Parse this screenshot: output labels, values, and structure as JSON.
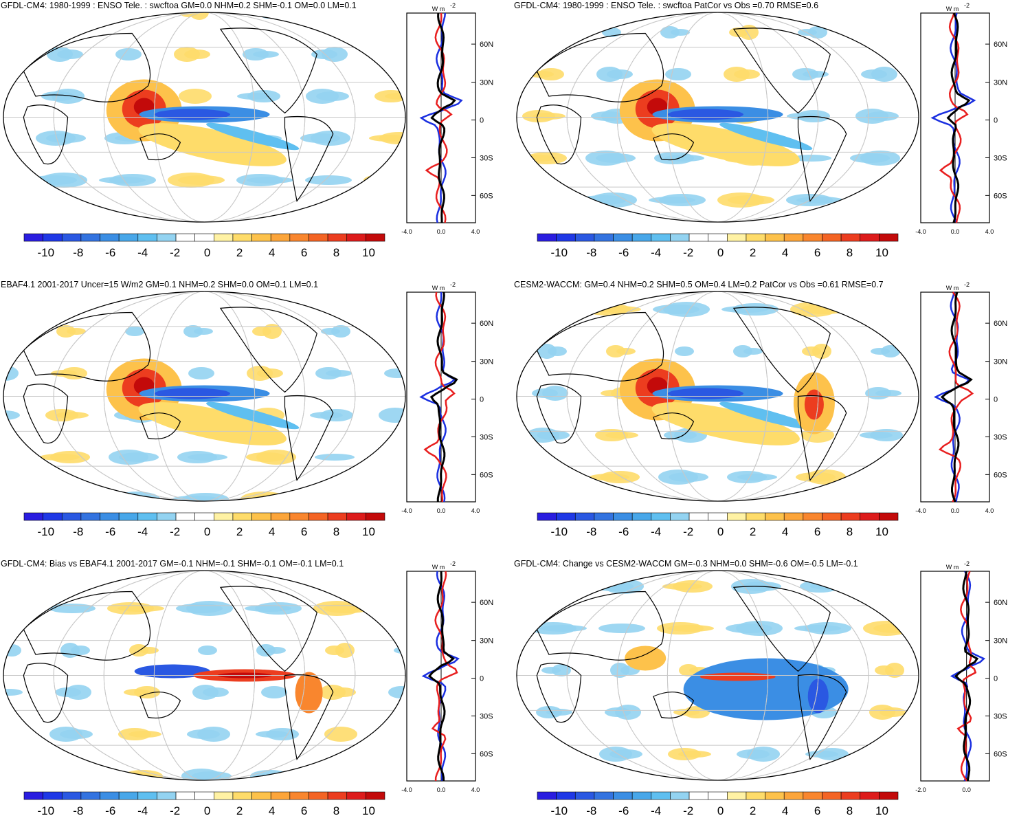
{
  "colorbar": {
    "colors": [
      "#2a1de0",
      "#1f38e6",
      "#2a58e2",
      "#3373e0",
      "#3b8ee4",
      "#48a7e9",
      "#5fbff0",
      "#93d3f1",
      "#ffffff",
      "#ffffff",
      "#fff2a4",
      "#fedc6a",
      "#fdc24b",
      "#fca53a",
      "#f9862e",
      "#f46424",
      "#ec3d1f",
      "#dd1b1b",
      "#c30a0a"
    ],
    "labels": [
      "-10",
      "-8",
      "-6",
      "-4",
      "-2",
      "0",
      "2",
      "4",
      "6",
      "8",
      "10"
    ]
  },
  "profile_lat_labels": [
    "60N",
    "30N",
    "0",
    "30S",
    "60S"
  ],
  "profile_units": "W m",
  "profile_units_exp": "-2",
  "series_colors": {
    "obs": "#1a2fe0",
    "model": "#e81e1e",
    "other": "#000000"
  },
  "panels": [
    {
      "id": "p1",
      "title": "GFDL-CM4: 1980-1999 : ENSO Tele. : swcftoa GM=0.0 NHM=0.2 SHM=-0.1 OM=0.0 LM=0.1",
      "xtick_labels": [
        "-4.0",
        "0.0",
        "4.0"
      ],
      "xlim": [
        -4,
        4
      ]
    },
    {
      "id": "p2",
      "title": "GFDL-CM4: 1980-1999 : ENSO Tele. : swcftoa PatCor vs Obs =0.70 RMSE=0.6",
      "xtick_labels": [
        "-4.0",
        "0.0",
        "4.0"
      ],
      "xlim": [
        -4,
        4
      ]
    },
    {
      "id": "p3",
      "title": "EBAF4.1 2001-2017 Uncer=15 W/m2 GM=0.1 NHM=0.2 SHM=0.0 OM=0.1 LM=0.1",
      "xtick_labels": [
        "-4.0",
        "0.0",
        "4.0"
      ],
      "xlim": [
        -4,
        4
      ]
    },
    {
      "id": "p4",
      "title": "CESM2-WACCM: GM=0.4 NHM=0.2 SHM=0.5 OM=0.4 LM=0.2 PatCor vs Obs =0.61 RMSE=0.7",
      "xtick_labels": [
        "-4.0",
        "0.0",
        "4.0"
      ],
      "xlim": [
        -4,
        4
      ]
    },
    {
      "id": "p5",
      "title": "GFDL-CM4: Bias vs EBAF4.1 2001-2017 GM=-0.1 NHM=-0.1 SHM=-0.1 OM=-0.1 LM=0.1",
      "xtick_labels": [
        "-4.0",
        "0.0",
        "4.0"
      ],
      "xlim": [
        -4,
        4
      ]
    },
    {
      "id": "p6",
      "title": "GFDL-CM4: Change vs CESM2-WACCM GM=-0.3 NHM=0.0 SHM=-0.6 OM=-0.5 LM=-0.1",
      "xtick_labels": [
        "-2.0",
        "0.0"
      ],
      "xlim": [
        -2,
        1
      ]
    }
  ]
}
